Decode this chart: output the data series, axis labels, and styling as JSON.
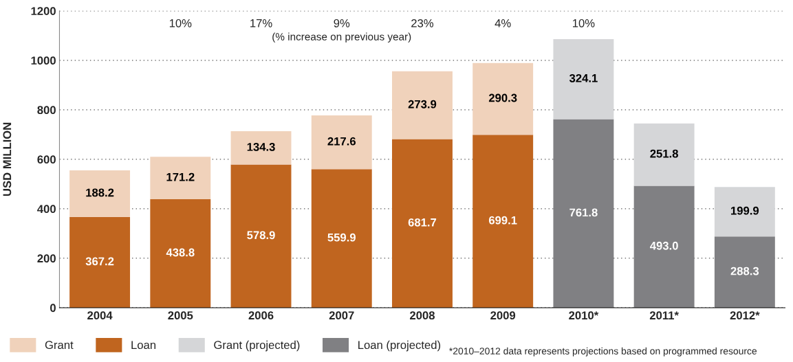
{
  "chart_data": {
    "type": "bar",
    "stacked": true,
    "ylabel": "USD MILLION",
    "categories": [
      "2004",
      "2005",
      "2006",
      "2007",
      "2008",
      "2009",
      "2010*",
      "2011*",
      "2012*"
    ],
    "series": [
      {
        "name": "Loan",
        "color": "#c0651f",
        "values": [
          367.2,
          438.8,
          578.9,
          559.9,
          681.7,
          699.1,
          null,
          null,
          null
        ],
        "value_labels": [
          "367.2",
          "438.8",
          "578.9",
          "559.9",
          "681.7",
          "699.1",
          null,
          null,
          null
        ]
      },
      {
        "name": "Loan (projected)",
        "color": "#808083",
        "values": [
          null,
          null,
          null,
          null,
          null,
          null,
          761.8,
          493.0,
          288.3
        ],
        "value_labels": [
          null,
          null,
          null,
          null,
          null,
          null,
          "761.8",
          "493.0",
          "288.3"
        ]
      },
      {
        "name": "Grant",
        "color": "#f0d2bb",
        "values": [
          188.2,
          171.2,
          134.3,
          217.6,
          273.9,
          290.3,
          null,
          null,
          null
        ],
        "value_labels": [
          "188.2",
          "171.2",
          "134.3",
          "217.6",
          "273.9",
          "290.3",
          null,
          null,
          null
        ]
      },
      {
        "name": "Grant (projected)",
        "color": "#d5d6d8",
        "values": [
          null,
          null,
          null,
          null,
          null,
          null,
          324.1,
          251.8,
          199.9
        ],
        "value_labels": [
          null,
          null,
          null,
          null,
          null,
          null,
          "324.1",
          "251.8",
          "199.9"
        ]
      }
    ],
    "ylim": [
      0,
      1200
    ],
    "yticks": [
      0,
      200,
      400,
      600,
      800,
      1000,
      1200
    ],
    "grid": "y",
    "legend": "bottom",
    "annotations": [
      "10%",
      "17%",
      "9%",
      "23%",
      "4%",
      "10%",
      "(% increase on previous year)",
      "*2010–2012 data represents projections based on programmed resource"
    ]
  }
}
